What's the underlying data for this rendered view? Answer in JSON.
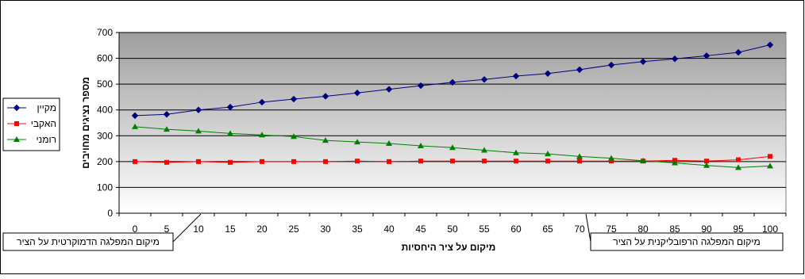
{
  "chart_data": {
    "type": "line",
    "title": "",
    "xlabel": "מיקום על ציר היחסיות",
    "ylabel": "מספר נציגים מחויבים",
    "x": [
      0,
      5,
      10,
      15,
      20,
      25,
      30,
      35,
      40,
      45,
      50,
      55,
      60,
      65,
      70,
      75,
      80,
      85,
      90,
      95,
      100
    ],
    "xlim": [
      0,
      100
    ],
    "ylim": [
      0,
      700
    ],
    "yticks": [
      0,
      100,
      200,
      300,
      400,
      500,
      600,
      700
    ],
    "grid": true,
    "legend_position": "left",
    "background": "gradient gray to white",
    "series": [
      {
        "name": "מקיין",
        "color": "#000080",
        "marker": "diamond",
        "values": [
          378,
          383,
          400,
          411,
          430,
          442,
          453,
          466,
          480,
          494,
          507,
          518,
          531,
          541,
          556,
          574,
          587,
          598,
          610,
          623,
          652
        ]
      },
      {
        "name": "האקבי",
        "color": "#ff0000",
        "marker": "square",
        "values": [
          200,
          197,
          200,
          197,
          200,
          200,
          200,
          202,
          200,
          202,
          202,
          202,
          202,
          202,
          202,
          202,
          202,
          205,
          202,
          207,
          220
        ]
      },
      {
        "name": "רומני",
        "color": "#008000",
        "marker": "triangle",
        "values": [
          335,
          325,
          318,
          309,
          303,
          297,
          282,
          276,
          270,
          261,
          254,
          244,
          234,
          230,
          220,
          213,
          203,
          195,
          185,
          177,
          183
        ]
      }
    ],
    "annotations": [
      {
        "text": "מיקום המפלגה הדמוקרטית על הציר",
        "x": 10
      },
      {
        "text": "מיקום המפלגה הרפובליקנית על הציר",
        "x": 70
      }
    ]
  }
}
